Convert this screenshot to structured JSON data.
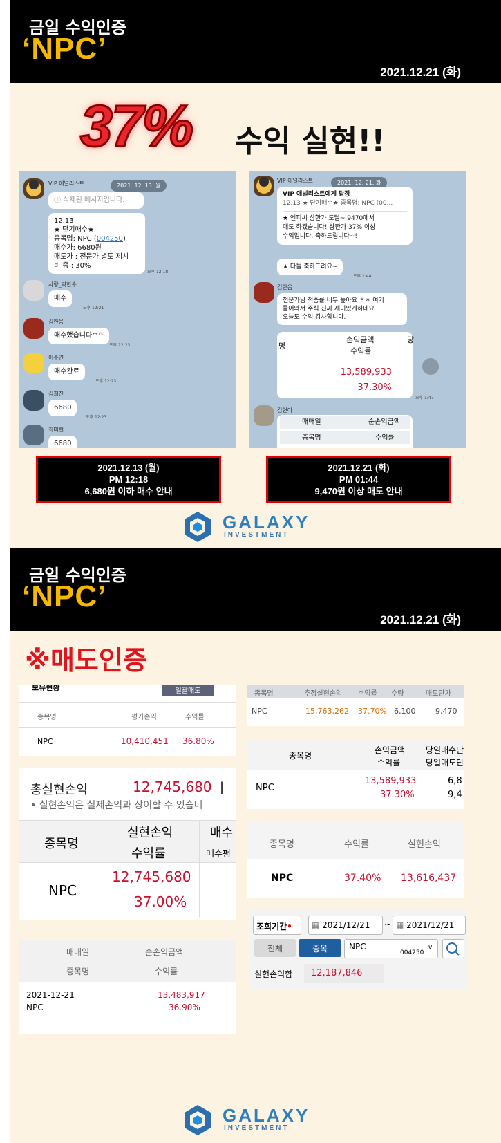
{
  "header": {
    "title": "금일 수익인증",
    "stock": "‘NPC’",
    "date": "2021.12.21 (화)"
  },
  "headline": {
    "percent": "37%",
    "text": "수익 실현!!"
  },
  "chat_left": {
    "date_chip": "2021. 12. 13. 월",
    "analyst": "VIP 애널리스트",
    "deleted": "삭제된 메시지입니다.",
    "message": [
      "12.13",
      "★ 단기매수★",
      "종목명: NPC (",
      "004250",
      ")",
      "매수가: 6680원",
      "매도가 : 전문가 별도 제시",
      "비  중 : 30%"
    ],
    "msg_time": "오후 12:18",
    "replies": [
      {
        "name": "사랑_곽한수",
        "text": "매수",
        "time": "오후 12:21"
      },
      {
        "name": "김한음",
        "text": "매수했습니다^^",
        "time": "오후 12:23"
      },
      {
        "name": "이수연",
        "text": "매수완료",
        "time": "오후 12:23"
      },
      {
        "name": "김희진",
        "text": "6680",
        "time": "오후 12:23"
      },
      {
        "name": "최미현",
        "text": "6680",
        "time": ""
      }
    ]
  },
  "chat_right": {
    "date_chip": "2021. 12. 21. 화",
    "analyst": "VIP 애널리스트",
    "reply_to": "VIP 애널리스트에게 답장",
    "reply_quote": "12.13 ★ 단기매수★ 종목명: NPC (00...",
    "message": [
      "★ 엔피씨 상한가 도달~ 9470에서",
      "매도 하겠습니다! 상한가 37% 이상",
      "수익입니다. 축하드립니다~!"
    ],
    "msg2": "★ 다들 축하드려요~",
    "msg2_time": "오후 1:44",
    "user": "김한음",
    "user_msg": [
      "전문가님 적중률 너무 높아요 ㅎㅎ 여기",
      "들어와서 주식 진짜 재미있게하네요.",
      "오늘도 수익 감사합니다."
    ],
    "table_col1": "명",
    "table_col2a": "손익금액",
    "table_col2b": "수익률",
    "table_col3": "당",
    "amount": "13,589,933",
    "rate": "37.30%",
    "table_time": "오후 1:47",
    "user2": "김현아",
    "t2_r1a": "매매일",
    "t2_r1b": "순손익금액",
    "t2_r2a": "종목명",
    "t2_r2b": "수익률"
  },
  "caption_left": [
    "2021.12.13 (월)",
    "PM 12:18",
    "6,680원 이하  매수 안내"
  ],
  "caption_right": [
    "2021.12.21 (화)",
    "PM 01:44",
    "9,470원 이상 매도 안내"
  ],
  "logo": {
    "name": "GALAXY",
    "sub": "INVESTMENT"
  },
  "section2_title": "※매도인증",
  "p1": {
    "tab": "보유현황",
    "btn": "일괄매도",
    "h1": "종목명",
    "h2": "평가손익",
    "h3": "수익률",
    "name": "NPC",
    "pnl": "10,410,451",
    "rate": "36.80%"
  },
  "p2": {
    "label": "총실현손익",
    "value": "12,745,680",
    "sep": "|",
    "note": "• 실현손익은 실제손익과 상이할 수 있습니",
    "h1": "종목명",
    "h2a": "실현손익",
    "h2b": "수익률",
    "h3a": "매수",
    "h3b": "매수평",
    "name": "NPC",
    "pnl": "12,745,680",
    "rate": "37.00%"
  },
  "p3": {
    "h1a": "매매일",
    "h1b": "순손익금액",
    "h2a": "종목명",
    "h2b": "수익률",
    "date": "2021-12-21",
    "name": "NPC",
    "amount": "13,483,917",
    "rate": "36.90%"
  },
  "p4": {
    "headers": [
      "종목명",
      "추정실현손익",
      "수익률",
      "수량",
      "매도단가"
    ],
    "row": [
      "NPC",
      "15,763,262",
      "37.70%",
      "6,100",
      "9,470"
    ]
  },
  "p5": {
    "h1": "종목명",
    "h2a": "손익금액",
    "h2b": "수익률",
    "h3a": "당일매수단",
    "h3b": "당일매도단",
    "name": "NPC",
    "amount": "13,589,933",
    "rate": "37.30%",
    "v1": "6,8",
    "v2": "9,4"
  },
  "p6": {
    "headers": [
      "종목명",
      "수익률",
      "실현손익"
    ],
    "row": [
      "NPC",
      "37.40%",
      "13,616,437"
    ]
  },
  "p7": {
    "period": "조회기간",
    "from": "2021/12/21",
    "tilde": "~",
    "to": "2021/12/21",
    "tab_all": "전체",
    "tab_stock": "종목",
    "stock": "NPC",
    "code": "004250",
    "result_label": "실현손익합",
    "result": "12,187,846"
  },
  "colors": {
    "accent": "#f5b800",
    "red": "#c8102e",
    "chat_bg": "#b2c7d9",
    "cream": "#fdf3e2"
  }
}
